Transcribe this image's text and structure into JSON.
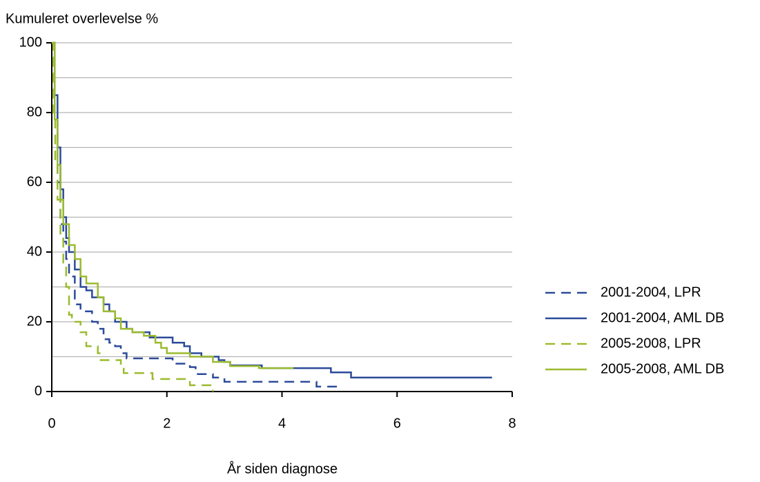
{
  "chart_data": {
    "type": "line",
    "step": true,
    "y_axis_label": "Kumuleret overlevelse %",
    "x_axis_label": "År siden diagnose",
    "xlim": [
      0,
      8
    ],
    "xticks": [
      0,
      2,
      4,
      6,
      8
    ],
    "ylim": [
      0,
      100
    ],
    "yticks": [
      0,
      20,
      40,
      60,
      80,
      100
    ],
    "grid_lines": [
      10,
      20,
      30,
      40,
      50,
      60,
      70,
      80,
      90,
      100
    ],
    "legend": "right",
    "series": [
      {
        "name": "2001-2004, LPR",
        "color": "#2b4a9a",
        "dash": true,
        "x": [
          0,
          0.05,
          0.1,
          0.15,
          0.2,
          0.25,
          0.3,
          0.4,
          0.5,
          0.7,
          0.8,
          0.9,
          1.0,
          1.1,
          1.2,
          1.3,
          2.1,
          2.4,
          2.5,
          2.8,
          3.0,
          4.6,
          5.05
        ],
        "y": [
          100,
          80,
          60,
          48,
          43,
          38,
          33,
          25,
          23,
          20,
          18,
          15,
          14,
          13,
          11,
          9.5,
          8,
          7,
          5,
          4,
          2.8,
          1.4,
          1.4
        ]
      },
      {
        "name": "2001-2004, AML DB",
        "color": "#2b4a9a",
        "dash": false,
        "x": [
          0,
          0.05,
          0.1,
          0.15,
          0.2,
          0.25,
          0.3,
          0.4,
          0.5,
          0.6,
          0.7,
          0.9,
          1.0,
          1.1,
          1.3,
          1.4,
          1.7,
          2.1,
          2.3,
          2.4,
          2.6,
          2.9,
          3.0,
          3.1,
          3.65,
          4.85,
          5.2,
          7.65
        ],
        "y": [
          100,
          85,
          70,
          58,
          50,
          44,
          40,
          35,
          30,
          29,
          27,
          25,
          23,
          20,
          18,
          17,
          15.5,
          14,
          13,
          11,
          10,
          9,
          8.5,
          7.5,
          6.7,
          5.5,
          4,
          4
        ]
      },
      {
        "name": "2005-2008, LPR",
        "color": "#9bbb2e",
        "dash": true,
        "x": [
          0,
          0.03,
          0.06,
          0.1,
          0.15,
          0.2,
          0.25,
          0.3,
          0.35,
          0.5,
          0.6,
          0.8,
          0.85,
          1.2,
          1.25,
          1.75,
          2.4,
          2.8
        ],
        "y": [
          100,
          80,
          65,
          55,
          45,
          37,
          30,
          22,
          20,
          17,
          13,
          11,
          9,
          7,
          5.3,
          3.6,
          1.8,
          0
        ]
      },
      {
        "name": "2005-2008, AML DB",
        "color": "#9bbb2e",
        "dash": false,
        "x": [
          0,
          0.05,
          0.1,
          0.15,
          0.2,
          0.3,
          0.4,
          0.5,
          0.6,
          0.8,
          0.9,
          1.1,
          1.2,
          1.4,
          1.6,
          1.8,
          1.9,
          2.0,
          2.4,
          2.8,
          3.1,
          3.6,
          4.2
        ],
        "y": [
          100,
          78,
          65,
          55,
          48,
          42,
          38,
          33,
          31,
          27,
          23,
          21,
          18,
          17,
          16,
          14,
          12.5,
          11,
          10,
          8.5,
          7.3,
          6.7,
          6.7
        ]
      }
    ]
  }
}
